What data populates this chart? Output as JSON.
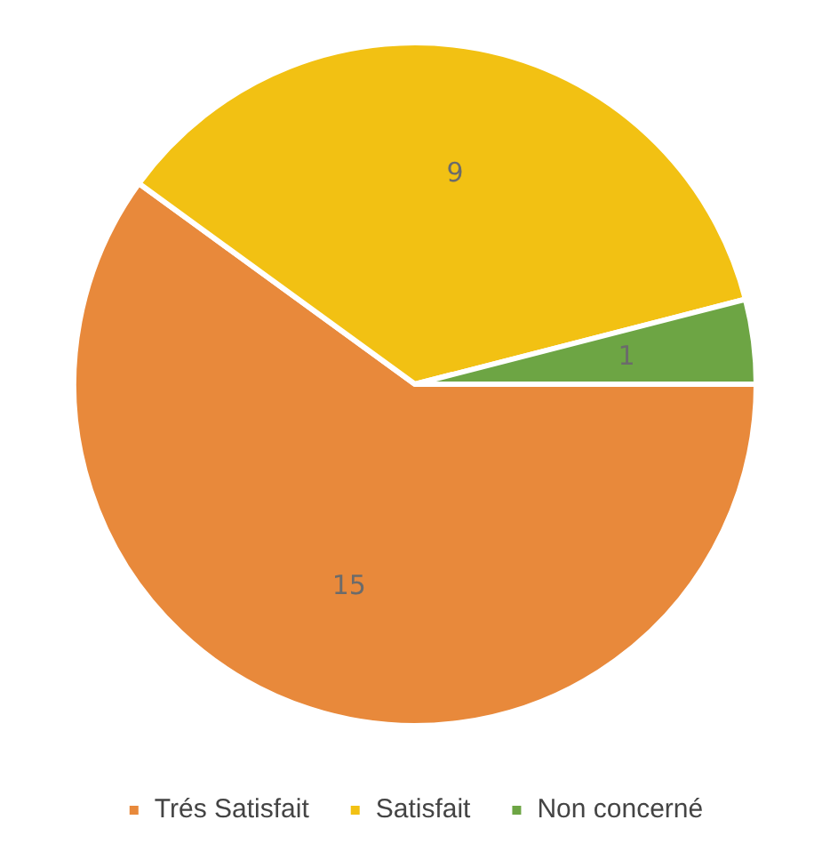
{
  "chart_data": {
    "type": "pie",
    "categories": [
      "Trés Satisfait",
      "Satisfait",
      "Non concerné"
    ],
    "values": [
      15,
      9,
      1
    ],
    "colors": [
      "#e8893b",
      "#f2c113",
      "#6da544"
    ],
    "data_labels": true,
    "legend": "bottom"
  }
}
